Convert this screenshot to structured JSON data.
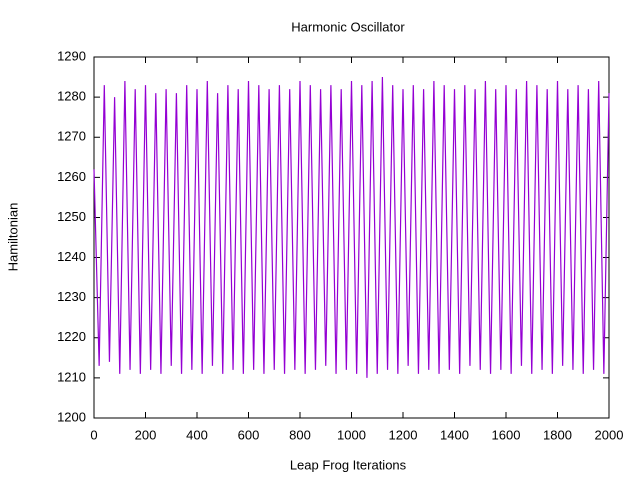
{
  "chart_data": {
    "type": "line",
    "title": "Harmonic Oscillator",
    "xlabel": "Leap Frog Iterations",
    "ylabel": "Hamiltonian",
    "color": "#9400d3",
    "x": [
      0,
      20,
      40,
      60,
      80,
      100,
      120,
      140,
      160,
      180,
      200,
      220,
      240,
      260,
      280,
      300,
      320,
      340,
      360,
      380,
      400,
      420,
      440,
      460,
      480,
      500,
      520,
      540,
      560,
      580,
      600,
      620,
      640,
      660,
      680,
      700,
      720,
      740,
      760,
      780,
      800,
      820,
      840,
      860,
      880,
      900,
      920,
      940,
      960,
      980,
      1000,
      1020,
      1040,
      1060,
      1080,
      1100,
      1120,
      1140,
      1160,
      1180,
      1200,
      1220,
      1240,
      1260,
      1280,
      1300,
      1320,
      1340,
      1360,
      1380,
      1400,
      1420,
      1440,
      1460,
      1480,
      1500,
      1520,
      1540,
      1560,
      1580,
      1600,
      1620,
      1640,
      1660,
      1680,
      1700,
      1720,
      1740,
      1760,
      1780,
      1800,
      1820,
      1840,
      1860,
      1880,
      1900,
      1920,
      1940,
      1960,
      1980,
      2000
    ],
    "values": [
      1262,
      1213,
      1283,
      1214,
      1280,
      1211,
      1284,
      1212,
      1282,
      1211,
      1283,
      1212,
      1281,
      1211,
      1282,
      1213,
      1281,
      1211,
      1283,
      1212,
      1282,
      1211,
      1284,
      1213,
      1281,
      1211,
      1283,
      1212,
      1282,
      1211,
      1284,
      1212,
      1283,
      1211,
      1282,
      1212,
      1283,
      1211,
      1282,
      1212,
      1284,
      1211,
      1283,
      1212,
      1282,
      1213,
      1283,
      1211,
      1282,
      1212,
      1284,
      1211,
      1283,
      1210,
      1284,
      1211,
      1285,
      1212,
      1283,
      1211,
      1282,
      1213,
      1283,
      1211,
      1282,
      1212,
      1284,
      1211,
      1283,
      1212,
      1282,
      1211,
      1283,
      1213,
      1282,
      1212,
      1284,
      1211,
      1282,
      1212,
      1283,
      1211,
      1282,
      1213,
      1284,
      1211,
      1283,
      1212,
      1282,
      1211,
      1284,
      1213,
      1282,
      1212,
      1283,
      1211,
      1282,
      1212,
      1284,
      1211,
      1281
    ],
    "xlim": [
      0,
      2000
    ],
    "xticks": [
      0,
      200,
      400,
      600,
      800,
      1000,
      1200,
      1400,
      1600,
      1800,
      2000
    ],
    "ylim": [
      1200,
      1290
    ],
    "yticks": [
      1200,
      1210,
      1220,
      1230,
      1240,
      1250,
      1260,
      1270,
      1280,
      1290
    ]
  }
}
